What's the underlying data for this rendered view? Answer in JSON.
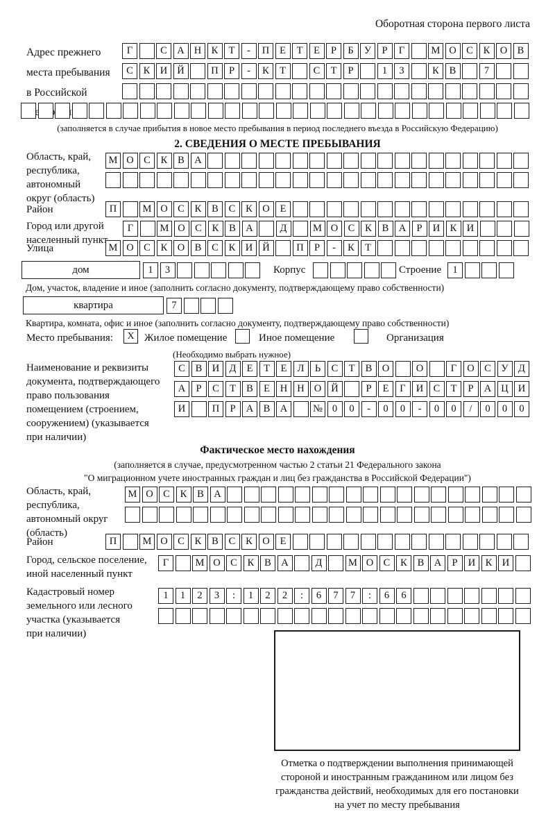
{
  "page_title": "Оборотная сторона первого листа",
  "colors": {
    "ink": "#1c1c1c",
    "background": "#ffffff"
  },
  "prev_address": {
    "label_lines": [
      "Адрес прежнего",
      "места пребывания",
      "в Российской",
      "Федерации"
    ],
    "rows": [
      {
        "text": "Г САНКТ-ПЕТЕРБУРГ МОСКОВ",
        "count": 24
      },
      {
        "text": "СКИЙ ПР-КТ СТР 13 КВ 7",
        "count": 24
      },
      {
        "text": "",
        "count": 24
      },
      {
        "text": "",
        "count": 30
      }
    ],
    "note": "(заполняется в случае прибытия в новое место пребывания в период последнего въезда в Российскую Федерацию)"
  },
  "section2": {
    "header": "2. СВЕДЕНИЯ О МЕСТЕ ПРЕБЫВАНИЯ",
    "region": {
      "label_lines": [
        "Область, край,",
        "республика,",
        "автономный",
        "округ (область)"
      ],
      "rows": [
        {
          "text": "МОСКВА",
          "count": 25
        },
        {
          "text": "",
          "count": 25
        }
      ]
    },
    "district": {
      "label": "Район",
      "row": {
        "text": "П МОСКВСКОЕ",
        "count": 25
      }
    },
    "city": {
      "label_lines": [
        "Город или другой",
        "населенный пункт"
      ],
      "row": {
        "text": "Г МОСКВА Д МОСКВАРИКИ",
        "count": 24
      }
    },
    "street": {
      "label": "Улица",
      "row": {
        "text": "МОСКОВСКИЙ ПР-КТ",
        "count": 25
      }
    },
    "house": {
      "box_label": "дом",
      "cells": {
        "text": "13",
        "count": 7
      },
      "korpus_label": "Корпус",
      "korpus_cells": {
        "text": "",
        "count": 5
      },
      "stroenie_label": "Строение",
      "stroenie_cells": {
        "text": "1",
        "count": 4
      },
      "note": "Дом, участок, владение и иное (заполнить согласно документу, подтверждающему право собственности)"
    },
    "apartment": {
      "box_label": "квартира",
      "cells": {
        "text": "7",
        "count": 4
      },
      "note": "Квартира, комната, офис и иное (заполнить согласно документу, подтверждающему право собственности)"
    },
    "stay_type": {
      "label": "Место пребывания:",
      "options": [
        {
          "label": "Жилое помещение",
          "mark": "X",
          "checked": true
        },
        {
          "label": "Иное помещение",
          "mark": "",
          "checked": false
        },
        {
          "label": "Организация",
          "mark": "",
          "checked": false
        }
      ],
      "note": "(Необходимо выбрать нужное)"
    },
    "document": {
      "label_lines": [
        "Наименование и реквизиты",
        "документа, подтверждающего",
        "право пользования",
        "помещением (строением,",
        "сооружением) (указывается",
        "при наличии)"
      ],
      "rows": [
        {
          "text": "СВИДЕТЕЛЬСТВО О ГОСУД",
          "count": 21
        },
        {
          "text": "АРСТВЕННОЙ РЕГИСТРАЦИ",
          "count": 21
        },
        {
          "text": "И ПРАВА №00-00-00/000",
          "count": 21
        }
      ]
    }
  },
  "actual_location": {
    "header": "Фактическое место нахождения",
    "note_lines": [
      "(заполняется в случае, предусмотренном частью 2 статьи 21 Федерального закона",
      "\"О миграционном учете иностранных граждан и лиц без гражданства в Российской Федерации\")"
    ],
    "region": {
      "label_lines": [
        "Область, край,",
        "республика,",
        "автономный округ",
        "(область)"
      ],
      "rows": [
        {
          "text": "МОСКВА",
          "count": 24
        },
        {
          "text": "",
          "count": 24
        }
      ]
    },
    "district": {
      "label": "Район",
      "row": {
        "text": "П МОСКВСКОЕ",
        "count": 25
      }
    },
    "city": {
      "label_lines": [
        "Город, сельское поселение,",
        "иной населенный пункт"
      ],
      "row": {
        "text": "Г МОСКВА Д МОСКВАРИКИ",
        "count": 22
      }
    },
    "cadastral": {
      "label_lines": [
        "Кадастровый номер",
        "земельного или лесного",
        "участка (указывается",
        "при наличии)"
      ],
      "rows": [
        {
          "text": "1123:122:677:66",
          "count": 22
        },
        {
          "text": "",
          "count": 22
        }
      ]
    }
  },
  "confirmation": {
    "caption_lines": [
      "Отметка о подтверждении выполнения принимающей",
      "стороной и иностранным гражданином или лицом без",
      "гражданства действий, необходимых для его постановки",
      "на учет по месту пребывания"
    ]
  }
}
